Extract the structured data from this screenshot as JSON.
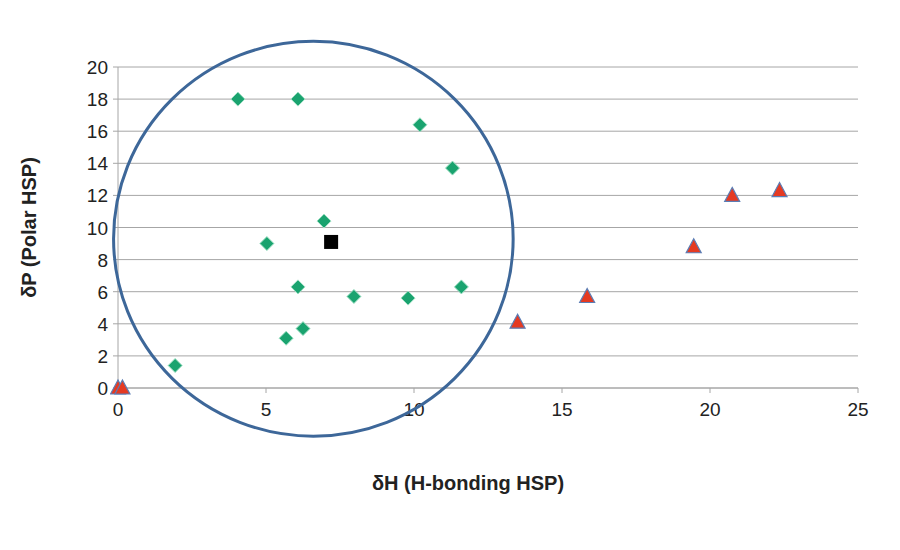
{
  "chart_data": {
    "type": "scatter",
    "x_label": "δH (H-bonding HSP)",
    "y_label": "δP (Polar HSP)",
    "xlim": [
      0,
      25
    ],
    "xticks": [
      0,
      5,
      10,
      15,
      20,
      25
    ],
    "ylim": [
      0,
      20
    ],
    "yticks": [
      0,
      2,
      4,
      6,
      8,
      10,
      12,
      14,
      16,
      18,
      20
    ],
    "grid": true,
    "series": [
      {
        "color": "#1aa36f",
        "marker": "diamond",
        "x": [
          4.05,
          6.08,
          10.2,
          11.3,
          6.96,
          5.03,
          6.08,
          7.97,
          9.8,
          11.6,
          6.25,
          5.68,
          1.93
        ],
        "values": [
          18.0,
          18.0,
          16.4,
          13.7,
          10.4,
          9.0,
          6.3,
          5.7,
          5.6,
          6.3,
          3.7,
          3.1,
          1.4
        ]
      },
      {
        "color": "#e53a22",
        "marker": "triangle",
        "x": [
          0.0,
          0.15,
          13.5,
          15.85,
          19.45,
          20.75,
          22.35
        ],
        "values": [
          0.0,
          0.0,
          4.1,
          5.7,
          8.8,
          12.0,
          12.3
        ]
      },
      {
        "color": "#000000",
        "marker": "square",
        "x": [
          7.2
        ],
        "values": [
          9.1
        ]
      }
    ],
    "circle": {
      "x": 6.6,
      "y": 9.3,
      "x_radius": 6.75,
      "y_radius": 12.3,
      "color": "#3d6799"
    }
  }
}
